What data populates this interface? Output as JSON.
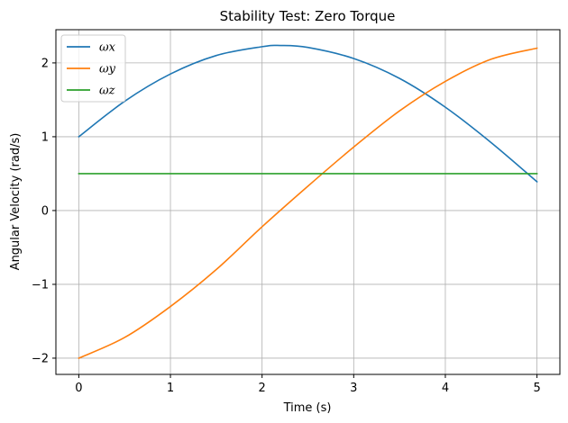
{
  "chart_data": {
    "type": "line",
    "title": "Stability Test: Zero Torque",
    "xlabel": "Time (s)",
    "ylabel": "Angular Velocity (rad/s)",
    "xlim": [
      -0.25,
      5.25
    ],
    "ylim": [
      -2.22,
      2.45
    ],
    "xticks": [
      0,
      1,
      2,
      3,
      4,
      5
    ],
    "xtick_labels": [
      "0",
      "1",
      "2",
      "3",
      "4",
      "5"
    ],
    "yticks": [
      -2,
      -1,
      0,
      1,
      2
    ],
    "ytick_labels": [
      "−2",
      "−1",
      "0",
      "1",
      "2"
    ],
    "grid": true,
    "legend_position": "upper-left",
    "series": [
      {
        "name": "ωx",
        "color": "#1f77b4",
        "x": [
          0,
          0.5,
          1,
          1.5,
          2,
          2.2,
          2.5,
          3,
          3.5,
          4,
          4.5,
          5
        ],
        "y": [
          1.0,
          1.48,
          1.85,
          2.1,
          2.22,
          2.236,
          2.21,
          2.06,
          1.79,
          1.4,
          0.92,
          0.39
        ]
      },
      {
        "name": "ωy",
        "color": "#ff7f0e",
        "x": [
          0,
          0.5,
          1,
          1.5,
          2,
          2.5,
          3,
          3.5,
          4,
          4.5,
          5
        ],
        "y": [
          -2.0,
          -1.72,
          -1.3,
          -0.8,
          -0.22,
          0.33,
          0.86,
          1.35,
          1.75,
          2.05,
          2.2
        ]
      },
      {
        "name": "ωz",
        "color": "#2ca02c",
        "x": [
          0,
          5
        ],
        "y": [
          0.5,
          0.5
        ]
      }
    ]
  }
}
